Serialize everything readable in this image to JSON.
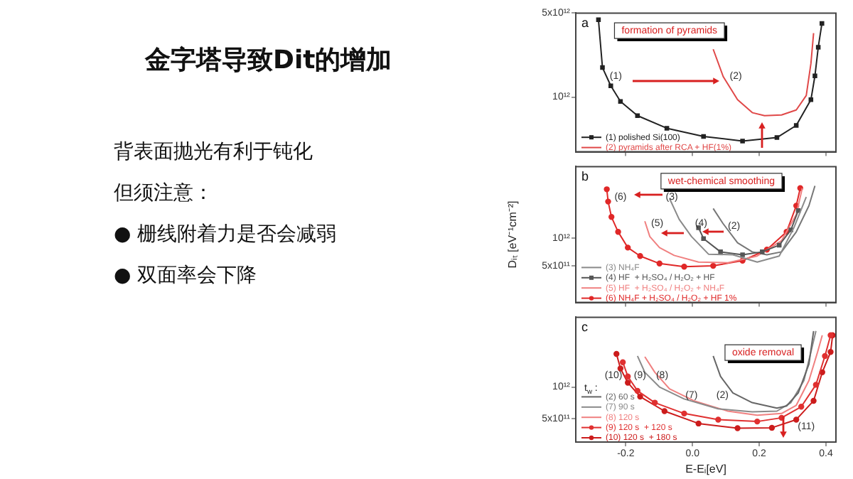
{
  "chart_data": [
    {
      "type": "other",
      "title": "金字塔导致Dit的增加",
      "annotations": [
        "背表面抛光有利于钝化",
        "但须注意：",
        "● 栅线附着力是否会减弱",
        "● 双面率会下降"
      ]
    },
    {
      "type": "line",
      "log": "y",
      "grid": false,
      "tick_labels": "y",
      "legend": "bottom left",
      "xlim": [
        -0.35,
        0.43
      ],
      "xticks": [
        -0.2,
        0.0,
        0.2,
        0.4
      ],
      "ylim": [
        350000000000.0,
        5000000000000.0
      ],
      "yticks": [
        {
          "value": 5000000000000.0,
          "label": "5x10¹²"
        },
        {
          "value": 1000000000000.0,
          "label": "10¹²"
        }
      ],
      "annotations": [
        "a",
        "formation of pyramids",
        "(1)",
        "(2)"
      ],
      "series": [
        {
          "name": "(1) polished Si(100)",
          "color": "#222222",
          "marker": "square",
          "x": [
            -0.282,
            -0.27,
            -0.245,
            -0.216,
            -0.165,
            -0.077,
            0.033,
            0.15,
            0.253,
            0.311,
            0.355,
            0.367,
            0.377,
            0.388
          ],
          "values": [
            4400000000000.0,
            1760000000000.0,
            1240000000000.0,
            920000000000.0,
            700000000000.0,
            550000000000.0,
            470000000000.0,
            430000000000.0,
            460000000000.0,
            580000000000.0,
            950000000000.0,
            1500000000000.0,
            2600000000000.0,
            4100000000000.0
          ]
        },
        {
          "name": "(2) pyramids after RCA + HF(1%)",
          "color": "#e04848",
          "marker": "none",
          "x": [
            0.062,
            0.092,
            0.135,
            0.18,
            0.216,
            0.267,
            0.311,
            0.341,
            0.355,
            0.363
          ],
          "values": [
            2500000000000.0,
            1480000000000.0,
            950000000000.0,
            740000000000.0,
            700000000000.0,
            710000000000.0,
            780000000000.0,
            1030000000000.0,
            1900000000000.0,
            3400000000000.0
          ]
        }
      ]
    },
    {
      "type": "line",
      "log": "y",
      "grid": false,
      "tick_labels": "y",
      "legend": "bottom left",
      "ylabel": "Dᵢₜ [eV⁻¹cm⁻²]",
      "xlim": [
        -0.35,
        0.43
      ],
      "xticks": [
        -0.2,
        0.0,
        0.2,
        0.4
      ],
      "ylim": [
        200000000000.0,
        6000000000000.0
      ],
      "yticks": [
        {
          "value": 1000000000000.0,
          "label": "10¹²"
        },
        {
          "value": 500000000000.0,
          "label": "5x10¹¹"
        }
      ],
      "annotations": [
        "b",
        "wet-chemical smoothing",
        "(6)",
        "(3)",
        "(5)",
        "(4)",
        "(2)"
      ],
      "series": [
        {
          "name": "(3) NH₄F",
          "color": "#8a8a8a",
          "marker": "none",
          "x": [
            -0.069,
            -0.04,
            -0.003,
            0.048,
            0.121,
            0.194,
            0.26,
            0.304,
            0.341
          ],
          "values": [
            2700000000000.0,
            1600000000000.0,
            1040000000000.0,
            670000000000.0,
            660000000000.0,
            550000000000.0,
            640000000000.0,
            1300000000000.0,
            2800000000000.0
          ]
        },
        {
          "name": "(4) HF  + H₂SO₄ / H₂O₂ + HF",
          "color": "#555555",
          "marker": "square",
          "x": [
            0.018,
            0.033,
            0.084,
            0.15,
            0.209,
            0.26,
            0.295,
            0.317
          ],
          "values": [
            1300000000000.0,
            990000000000.0,
            710000000000.0,
            660000000000.0,
            710000000000.0,
            840000000000.0,
            1230000000000.0,
            2000000000000.0
          ]
        },
        {
          "name": "(5) HF  + H₂SO₄ / H₂O₂ + NH₄F",
          "color": "#f08080",
          "marker": "none",
          "x": [
            -0.143,
            -0.128,
            -0.099,
            -0.055,
            0.018,
            0.106,
            0.194,
            0.267,
            0.311,
            0.329
          ],
          "values": [
            1530000000000.0,
            1040000000000.0,
            790000000000.0,
            650000000000.0,
            550000000000.0,
            540000000000.0,
            640000000000.0,
            940000000000.0,
            1800000000000.0,
            3500000000000.0
          ]
        },
        {
          "name": "(6) NH₄F + H₂SO₄ / H₂O₂ + HF 1%",
          "color": "#e02828",
          "marker": "circle",
          "x": [
            -0.257,
            -0.253,
            -0.243,
            -0.223,
            -0.194,
            -0.157,
            -0.099,
            -0.025,
            0.062,
            0.15,
            0.223,
            0.282,
            0.311,
            0.323
          ],
          "values": [
            3400000000000.0,
            2500000000000.0,
            1700000000000.0,
            1170000000000.0,
            790000000000.0,
            640000000000.0,
            530000000000.0,
            490000000000.0,
            500000000000.0,
            570000000000.0,
            750000000000.0,
            1170000000000.0,
            2250000000000.0,
            3500000000000.0
          ]
        },
        {
          "color": "#777777",
          "marker": "none",
          "x": [
            0.062,
            0.091,
            0.135,
            0.179,
            0.223,
            0.267,
            0.311,
            0.349,
            0.367
          ],
          "values": [
            2100000000000.0,
            1450000000000.0,
            890000000000.0,
            710000000000.0,
            660000000000.0,
            710000000000.0,
            1170000000000.0,
            2250000000000.0,
            3700000000000.0
          ]
        }
      ]
    },
    {
      "type": "line",
      "log": "y",
      "grid": false,
      "legend": "bottom left",
      "legend_title": "t$_{w}$ :",
      "xlabel": "E-Eᵢ[eV]",
      "xlim": [
        -0.35,
        0.43
      ],
      "xticks": [
        -0.2,
        {
          "value": 0,
          "label": "0.0"
        },
        0.2,
        0.4
      ],
      "ylim": [
        300000000000.0,
        4600000000000.0
      ],
      "yticks": [
        {
          "value": 1000000000000.0,
          "label": "10¹²"
        },
        {
          "value": 500000000000.0,
          "label": "5x10¹¹"
        }
      ],
      "annotations": [
        "c",
        "oxide removal",
        "(10)",
        "(9)",
        "(8)",
        "(7)",
        "(2)",
        "(11)"
      ],
      "series": [
        {
          "name": "(2) 60 s",
          "color": "#666666",
          "marker": "none",
          "x": [
            0.062,
            0.084,
            0.121,
            0.179,
            0.253,
            0.282,
            0.317,
            0.349,
            0.363
          ],
          "values": [
            1970000000000.0,
            1260000000000.0,
            880000000000.0,
            710000000000.0,
            630000000000.0,
            660000000000.0,
            880000000000.0,
            1650000000000.0,
            3400000000000.0
          ]
        },
        {
          "name": "(7) 90 s",
          "color": "#8a8a8a",
          "marker": "none",
          "x": [
            -0.165,
            -0.143,
            -0.099,
            -0.025,
            0.077,
            0.179,
            0.253,
            0.295,
            0.334,
            0.355,
            0.37
          ],
          "values": [
            1970000000000.0,
            1380000000000.0,
            1000000000000.0,
            770000000000.0,
            620000000000.0,
            580000000000.0,
            590000000000.0,
            710000000000.0,
            1150000000000.0,
            2150000000000.0,
            3400000000000.0
          ]
        },
        {
          "name": "(8) 120 s",
          "color": "#f08080",
          "marker": "none",
          "x": [
            -0.143,
            -0.113,
            -0.069,
            0.004,
            0.106,
            0.194,
            0.267,
            0.311,
            0.349,
            0.375,
            0.389
          ],
          "values": [
            1940000000000.0,
            1380000000000.0,
            960000000000.0,
            740000000000.0,
            590000000000.0,
            540000000000.0,
            560000000000.0,
            670000000000.0,
            1150000000000.0,
            2150000000000.0,
            3100000000000.0
          ]
        },
        {
          "name": "(9) 120 s  + 120 s",
          "color": "#e03030",
          "marker": "circle",
          "x": [
            -0.209,
            -0.194,
            -0.165,
            -0.113,
            -0.025,
            0.077,
            0.194,
            0.267,
            0.326,
            0.37,
            0.397,
            0.414
          ],
          "values": [
            1720000000000.0,
            1260000000000.0,
            920000000000.0,
            710000000000.0,
            560000000000.0,
            490000000000.0,
            470000000000.0,
            510000000000.0,
            650000000000.0,
            1050000000000.0,
            1970000000000.0,
            3100000000000.0
          ]
        },
        {
          "name": "(10) 120 s  + 180 s",
          "color": "#cc1c1c",
          "marker": "circle",
          "x": [
            -0.228,
            -0.216,
            -0.194,
            -0.157,
            -0.084,
            0.018,
            0.135,
            0.238,
            0.311,
            0.363,
            0.389,
            0.414,
            0.42
          ],
          "values": [
            2060000000000.0,
            1500000000000.0,
            1100000000000.0,
            810000000000.0,
            590000000000.0,
            450000000000.0,
            406000000000.0,
            410000000000.0,
            490000000000.0,
            740000000000.0,
            1380000000000.0,
            2150000000000.0,
            3100000000000.0
          ]
        }
      ]
    }
  ]
}
